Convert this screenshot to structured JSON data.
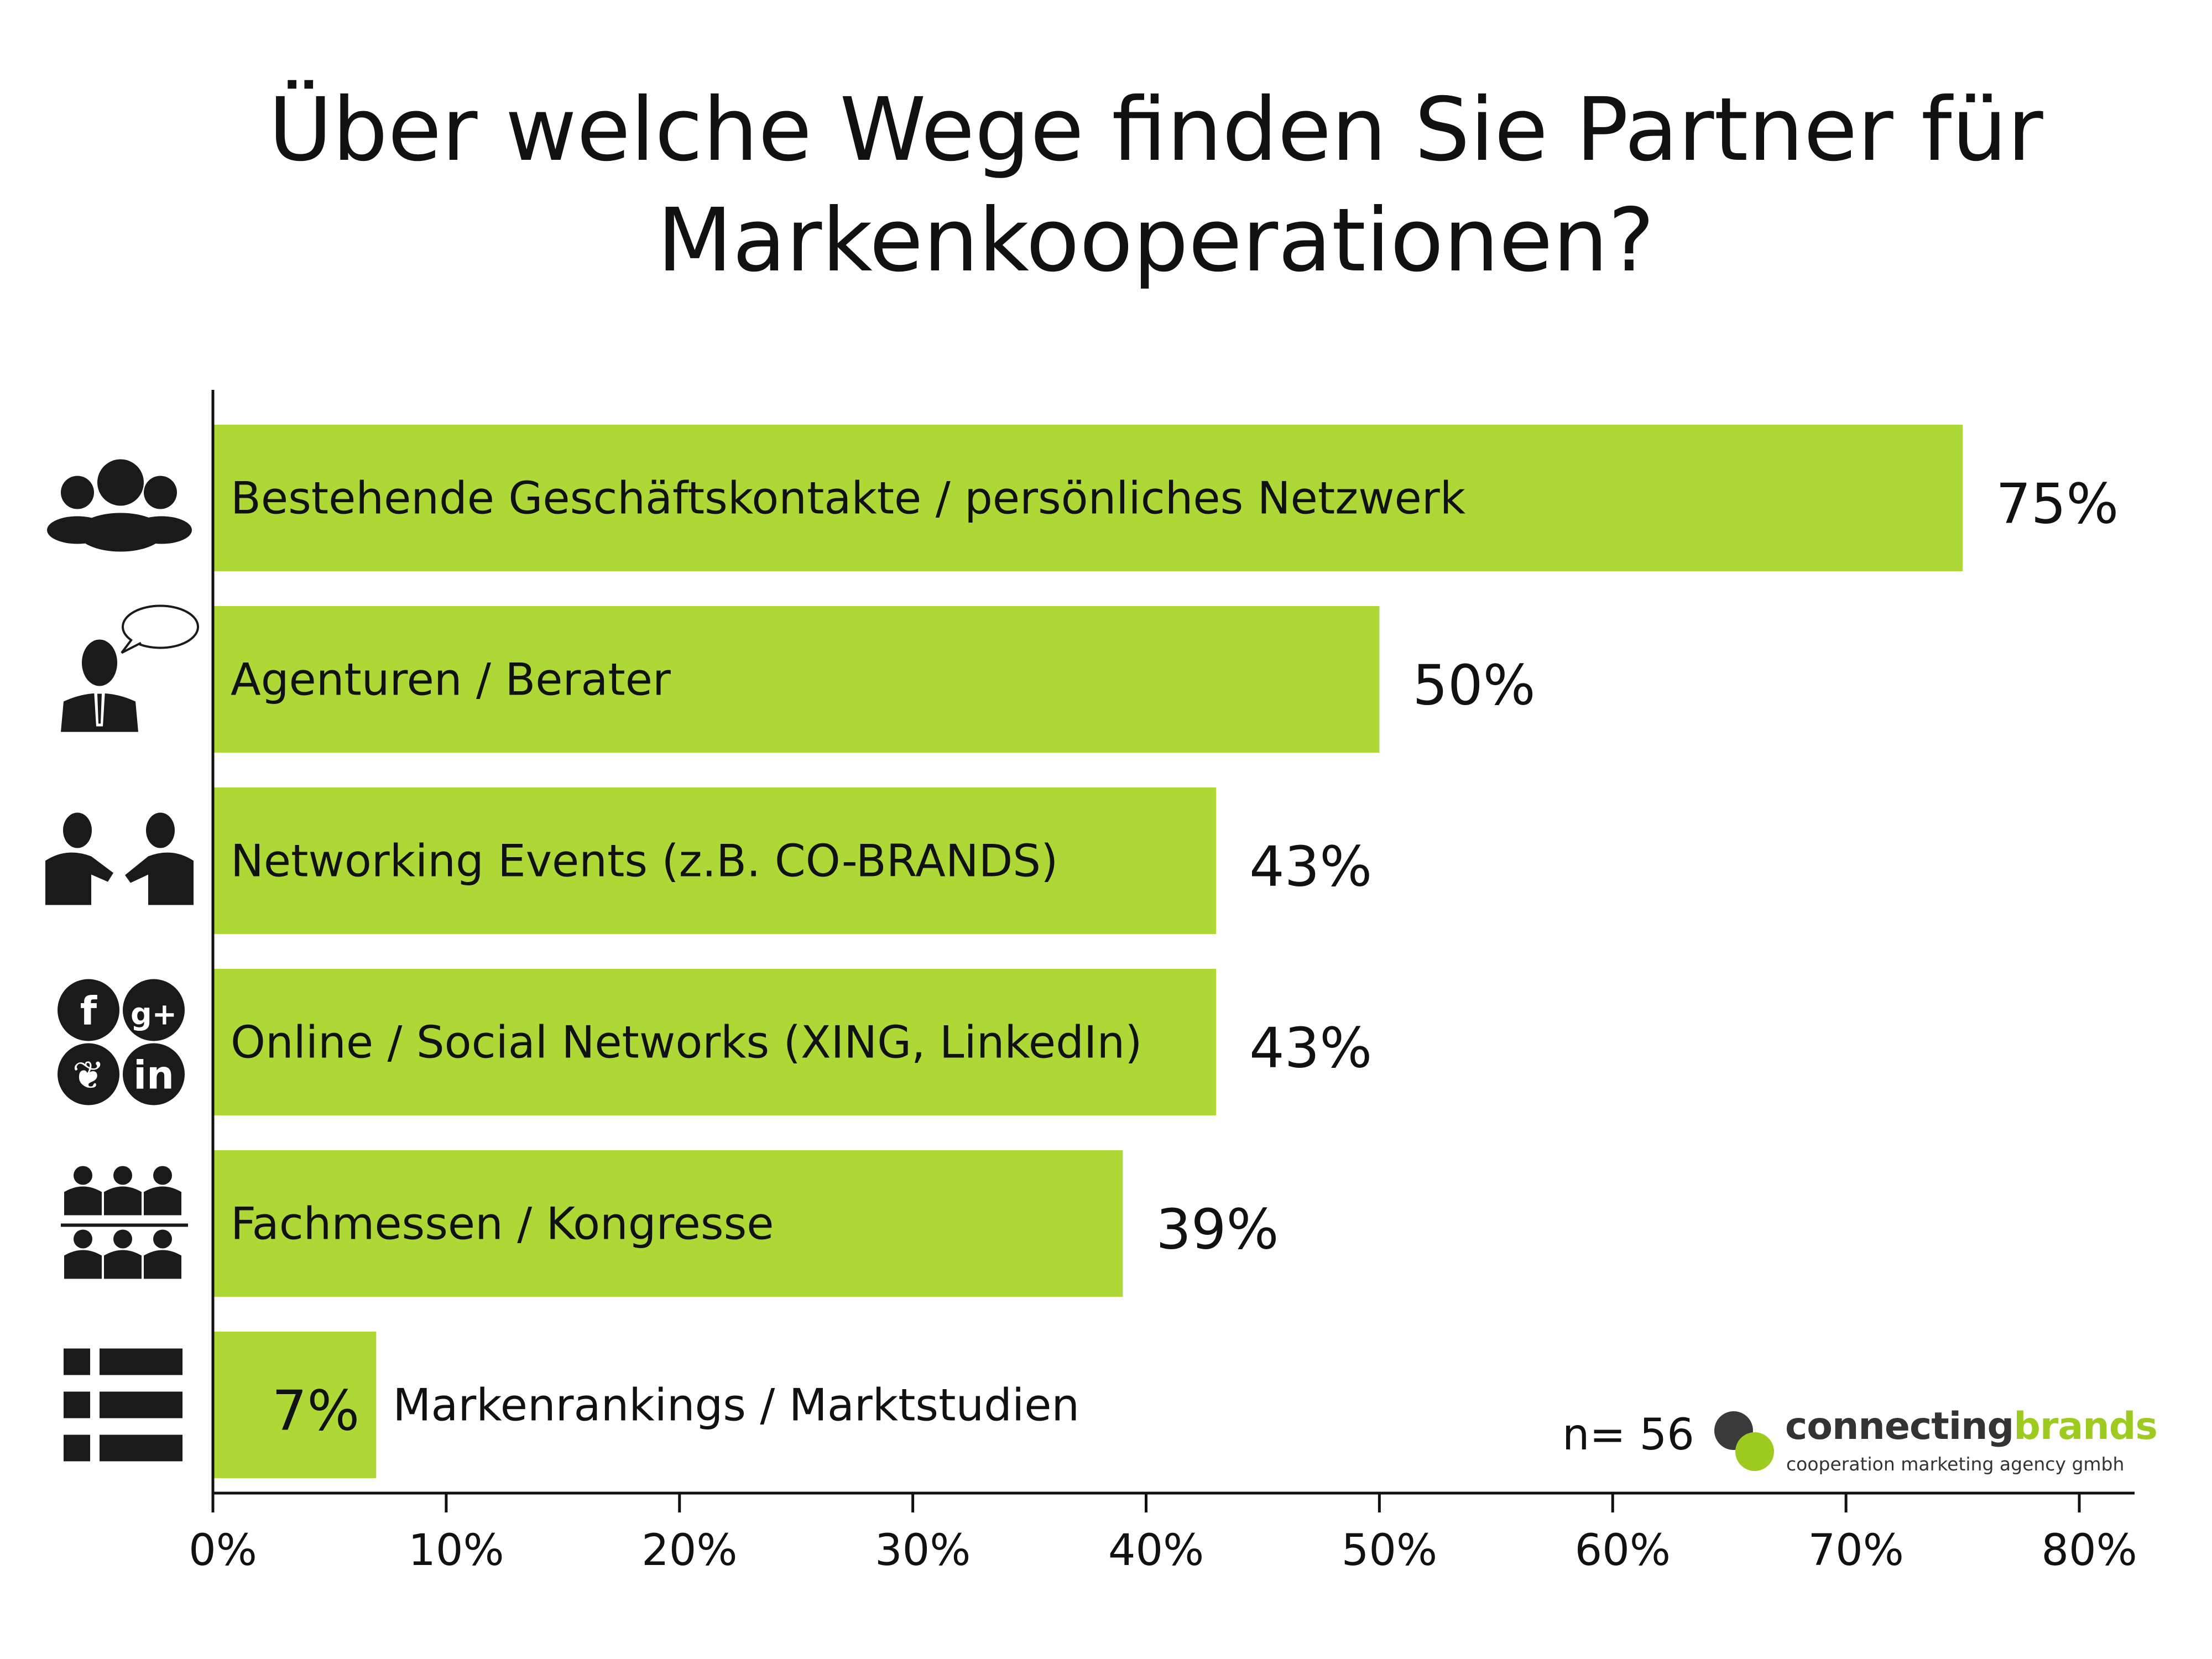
{
  "title": {
    "line1": "Über welche Wege finden Sie Partner für",
    "line2": "Markenkooperationen?"
  },
  "chart_data": {
    "type": "bar",
    "orientation": "horizontal",
    "categories": [
      "Bestehende Geschäftskontakte / persönliches Netzwerk",
      "Agenturen / Berater",
      "Networking Events (z.B. CO-BRANDS)",
      "Online / Social Networks (XING, LinkedIn)",
      "Fachmessen / Kongresse",
      "Markenrankings / Marktstudien"
    ],
    "values": [
      75,
      50,
      43,
      43,
      39,
      7
    ],
    "value_labels": [
      "75%",
      "50%",
      "43%",
      "43%",
      "39%",
      "7%"
    ],
    "icons": [
      "group-icon",
      "consultant-speech-icon",
      "handshake-meeting-icon",
      "social-networks-icon",
      "audience-icon",
      "list-icon"
    ],
    "xlim": [
      0,
      80
    ],
    "ticks": [
      0,
      10,
      20,
      30,
      40,
      50,
      60,
      70,
      80
    ],
    "tick_labels": [
      "0%",
      "10%",
      "20%",
      "30%",
      "40%",
      "50%",
      "60%",
      "70%",
      "80%"
    ],
    "bar_color": "#add836",
    "grid": false,
    "legend": "none"
  },
  "sample_note": "n= 56",
  "logo": {
    "name_part1": "connecting",
    "name_part2": "brands",
    "tagline": "cooperation marketing agency gmbh",
    "colors": {
      "dark": "#3a3a3a",
      "green": "#9ecb1f"
    }
  }
}
